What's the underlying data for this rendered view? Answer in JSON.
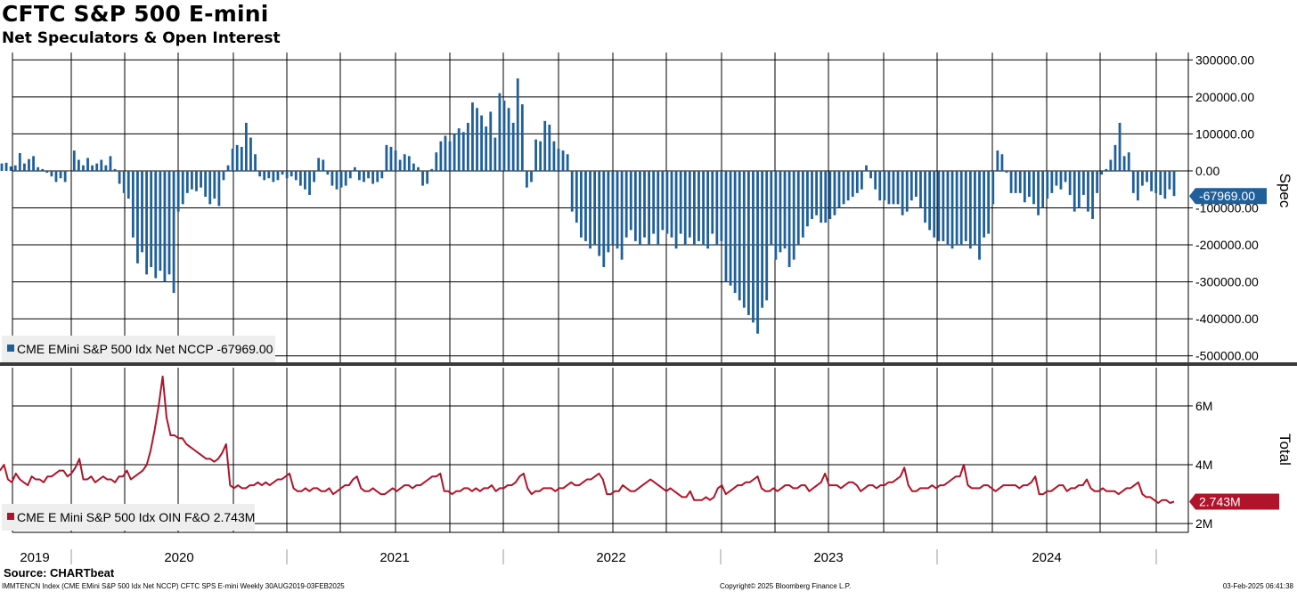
{
  "header": {
    "title": "CFTC S&P 500 E-mini",
    "subtitle": "Net Speculators & Open Interest"
  },
  "footer": {
    "source": "Source: CHARTbeat",
    "index_note": "IMMTENCN Index (CME EMini S&P 500 Idx Net NCCP) CFTC SPS E-mini  Weekly 30AUG2019-03FEB2025",
    "copyright": "Copyright© 2025 Bloomberg Finance L.P.",
    "timestamp": "03-Feb-2025 06:41:38"
  },
  "colors": {
    "spec_bar": "#1f5f9a",
    "oi_line": "#b0142a",
    "grid": "#000000",
    "legend_bg": "#eeeeee"
  },
  "chart_data": [
    {
      "type": "bar",
      "panel": "top",
      "axis_title": "Spec",
      "ylim": [
        -520000,
        320000
      ],
      "yticks": [
        300000,
        200000,
        100000,
        0,
        -100000,
        -200000,
        -300000,
        -400000,
        -500000
      ],
      "ytick_labels": [
        "300000.00",
        "200000.00",
        "100000.00",
        "0.00",
        "-100000.00",
        "-200000.00",
        "-300000.00",
        "-400000.00",
        "-500000.00"
      ],
      "last_value_label": "-67969.00",
      "last_value": -67969,
      "legend": "CME EMini S&P 500 Idx Net NCCP -67969.00",
      "series": [
        {
          "name": "CME EMini S&P 500 Idx Net NCCP",
          "values": [
            20000,
            22000,
            12000,
            15000,
            48000,
            20000,
            32000,
            40000,
            10000,
            5000,
            -5000,
            -15000,
            -30000,
            -20000,
            -30000,
            0,
            55000,
            30000,
            15000,
            35000,
            15000,
            20000,
            30000,
            15000,
            40000,
            5000,
            -35000,
            -60000,
            -75000,
            -180000,
            -250000,
            -220000,
            -280000,
            -260000,
            -290000,
            -270000,
            -300000,
            -280000,
            -330000,
            -110000,
            -90000,
            -60000,
            -50000,
            -55000,
            -45000,
            -70000,
            -90000,
            -75000,
            -95000,
            -25000,
            15000,
            60000,
            70000,
            65000,
            130000,
            90000,
            45000,
            -15000,
            -25000,
            -20000,
            -30000,
            -25000,
            -10000,
            -20000,
            -15000,
            -25000,
            -40000,
            -50000,
            -65000,
            -30000,
            35000,
            30000,
            -10000,
            -40000,
            -50000,
            -45000,
            -40000,
            -20000,
            10000,
            -25000,
            -30000,
            -20000,
            -35000,
            -30000,
            -20000,
            70000,
            65000,
            55000,
            30000,
            45000,
            40000,
            20000,
            10000,
            -40000,
            -35000,
            5000,
            50000,
            80000,
            95000,
            80000,
            100000,
            115000,
            105000,
            130000,
            185000,
            170000,
            150000,
            120000,
            160000,
            90000,
            210000,
            190000,
            170000,
            130000,
            250000,
            180000,
            -45000,
            -30000,
            85000,
            80000,
            135000,
            125000,
            80000,
            60000,
            55000,
            45000,
            -110000,
            -140000,
            -180000,
            -190000,
            -210000,
            -200000,
            -230000,
            -260000,
            -220000,
            -200000,
            -210000,
            -240000,
            -180000,
            -160000,
            -190000,
            -200000,
            -180000,
            -200000,
            -170000,
            -200000,
            -160000,
            -170000,
            -180000,
            -210000,
            -170000,
            -200000,
            -180000,
            -200000,
            -190000,
            -200000,
            -210000,
            -170000,
            -200000,
            -190000,
            -300000,
            -310000,
            -330000,
            -350000,
            -370000,
            -390000,
            -410000,
            -440000,
            -370000,
            -350000,
            -200000,
            -240000,
            -220000,
            -210000,
            -260000,
            -240000,
            -200000,
            -180000,
            -150000,
            -130000,
            -120000,
            -140000,
            -140000,
            -130000,
            -120000,
            -100000,
            -90000,
            -80000,
            -70000,
            -60000,
            -50000,
            15000,
            -20000,
            -50000,
            -80000,
            -80000,
            -90000,
            -90000,
            -90000,
            -120000,
            -110000,
            -80000,
            -70000,
            -100000,
            -140000,
            -160000,
            -180000,
            -190000,
            -190000,
            -200000,
            -210000,
            -200000,
            -200000,
            -190000,
            -210000,
            -200000,
            -240000,
            -180000,
            -170000,
            -90000,
            55000,
            45000,
            -5000,
            -60000,
            -60000,
            -60000,
            -85000,
            -70000,
            -90000,
            -120000,
            -100000,
            -75000,
            -60000,
            -40000,
            -50000,
            -30000,
            -65000,
            -110000,
            -100000,
            -65000,
            -110000,
            -130000,
            -60000,
            -10000,
            5000,
            30000,
            70000,
            130000,
            40000,
            50000,
            -60000,
            -80000,
            -40000,
            -30000,
            -55000,
            -60000,
            -65000,
            -75000,
            -50000,
            -68000
          ]
        }
      ]
    },
    {
      "type": "line",
      "panel": "bottom",
      "axis_title": "Total",
      "ylim": [
        1700000,
        7300000
      ],
      "yticks": [
        6000000,
        4000000,
        2000000
      ],
      "ytick_labels": [
        "6M",
        "4M",
        "2M"
      ],
      "last_value_label": "2.743M",
      "last_value": 2743000,
      "legend": "CME E Mini S&P 500 Idx OIN F&O 2.743M",
      "series": [
        {
          "name": "CME E Mini S&P 500 Idx OIN F&O",
          "values": [
            3800000,
            4000000,
            3500000,
            3400000,
            3700000,
            3500000,
            3400000,
            3300000,
            3600000,
            3500000,
            3500000,
            3400000,
            3600000,
            3600000,
            3700000,
            3800000,
            3800000,
            3600000,
            3700000,
            3900000,
            4200000,
            3500000,
            3500000,
            3600000,
            3400000,
            3500000,
            3600000,
            3500000,
            3500000,
            3400000,
            3600000,
            3600000,
            3800000,
            3500000,
            3600000,
            3700000,
            3800000,
            4000000,
            4500000,
            5200000,
            6000000,
            7000000,
            5600000,
            5000000,
            5000000,
            4900000,
            4900000,
            4700000,
            4600000,
            4500000,
            4400000,
            4300000,
            4200000,
            4200000,
            4100000,
            4200000,
            4400000,
            4700000,
            3300000,
            3200000,
            3300000,
            3200000,
            3200000,
            3300000,
            3300000,
            3400000,
            3300000,
            3400000,
            3300000,
            3400000,
            3500000,
            3500000,
            3600000,
            3700000,
            3200000,
            3100000,
            3100000,
            3200000,
            3100000,
            3200000,
            3200000,
            3100000,
            3100000,
            3200000,
            3000000,
            3100000,
            3200000,
            3300000,
            3300000,
            3500000,
            3600000,
            3200000,
            3100000,
            3100000,
            3200000,
            3100000,
            3000000,
            3000000,
            3100000,
            3200000,
            3100000,
            3200000,
            3300000,
            3300000,
            3200000,
            3300000,
            3300000,
            3400000,
            3500000,
            3600000,
            3600000,
            3700000,
            3100000,
            3100000,
            3000000,
            3100000,
            3100000,
            3200000,
            3200000,
            3100000,
            3200000,
            3100000,
            3200000,
            3200000,
            3300000,
            3100000,
            3200000,
            3200000,
            3300000,
            3300000,
            3400000,
            3600000,
            3700000,
            3200000,
            3000000,
            3100000,
            3100000,
            3200000,
            3200000,
            3200000,
            3100000,
            3200000,
            3200000,
            3300000,
            3400000,
            3300000,
            3300000,
            3400000,
            3500000,
            3500000,
            3600000,
            3700000,
            3500000,
            3000000,
            3000000,
            3100000,
            3100000,
            3300000,
            3200000,
            3100000,
            3100000,
            3200000,
            3300000,
            3400000,
            3500000,
            3400000,
            3300000,
            3200000,
            3100000,
            3200000,
            3100000,
            3000000,
            2900000,
            2900000,
            3100000,
            2800000,
            2800000,
            2800000,
            2900000,
            2800000,
            2900000,
            3200000,
            3300000,
            3000000,
            3100000,
            3200000,
            3300000,
            3300000,
            3400000,
            3400000,
            3500000,
            3600000,
            3200000,
            3100000,
            3100000,
            3200000,
            3100000,
            3200000,
            3300000,
            3300000,
            3200000,
            3200000,
            3300000,
            3300000,
            3100000,
            3200000,
            3300000,
            3400000,
            3700000,
            3300000,
            3300000,
            3300000,
            3200000,
            3300000,
            3400000,
            3400000,
            3300000,
            3100000,
            3200000,
            3300000,
            3300000,
            3200000,
            3300000,
            3300000,
            3400000,
            3400000,
            3500000,
            3600000,
            3900000,
            3300000,
            3100000,
            3100000,
            3200000,
            3200000,
            3200000,
            3300000,
            3200000,
            3300000,
            3300000,
            3400000,
            3500000,
            3600000,
            3600000,
            4000000,
            3300000,
            3200000,
            3200000,
            3200000,
            3300000,
            3300000,
            3200000,
            3100000,
            3200000,
            3300000,
            3300000,
            3300000,
            3300000,
            3200000,
            3300000,
            3300000,
            3400000,
            3600000,
            3000000,
            3000000,
            3100000,
            3100000,
            3200000,
            3300000,
            3300000,
            3100000,
            3200000,
            3200000,
            3300000,
            3300000,
            3500000,
            3200000,
            3100000,
            3100000,
            3200000,
            3100000,
            3100000,
            3100000,
            3000000,
            3100000,
            3200000,
            3200000,
            3300000,
            3400000,
            3000000,
            2900000,
            2900000,
            2800000,
            2700000,
            2800000,
            2800000,
            2700000,
            2743000
          ]
        }
      ]
    }
  ],
  "x_axis": {
    "year_labels": [
      "2019",
      "2020",
      "2021",
      "2022",
      "2023",
      "2024"
    ]
  }
}
